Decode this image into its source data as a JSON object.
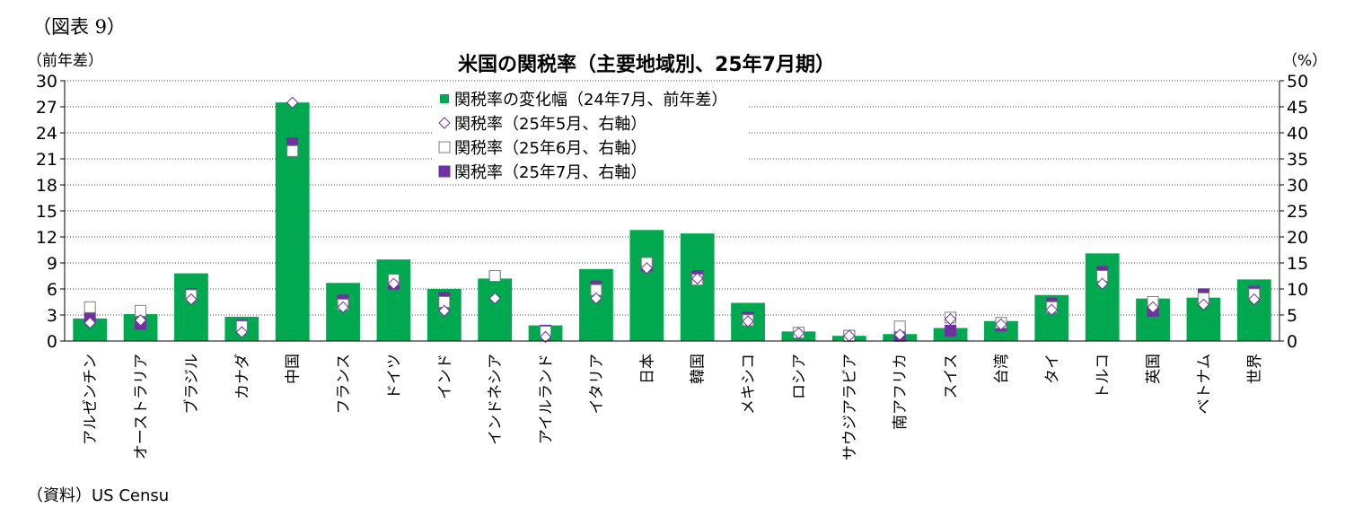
{
  "figure_label": "（図表 9）",
  "source": "（資料）US Censu",
  "chart_data": {
    "type": "bar",
    "title": "米国の関税率（主要地域別、25年7月期）",
    "ylabel_left": "（前年差）",
    "ylabel_right": "（%）",
    "ylim_left": [
      0,
      30
    ],
    "yticks_left": [
      0,
      3,
      6,
      9,
      12,
      15,
      18,
      21,
      24,
      27,
      30
    ],
    "ylim_right": [
      0,
      50
    ],
    "yticks_right": [
      0,
      5,
      10,
      15,
      20,
      25,
      30,
      35,
      40,
      45,
      50
    ],
    "grid": true,
    "legend_position": "top-center",
    "categories": [
      "アルゼンチン",
      "オーストラリア",
      "ブラジル",
      "カナダ",
      "中国",
      "フランス",
      "ドイツ",
      "インド",
      "インドネシア",
      "アイルランド",
      "イタリア",
      "日本",
      "韓国",
      "メキシコ",
      "ロシア",
      "サウジアラビア",
      "南アフリカ",
      "スイス",
      "台湾",
      "タイ",
      "トルコ",
      "英国",
      "ベトナム",
      "世界"
    ],
    "series": [
      {
        "name": "関税率の変化幅（24年7月、前年差）",
        "axis": "left",
        "kind": "bar",
        "color": "#00a84f",
        "values": [
          2.6,
          3.1,
          7.8,
          2.8,
          27.5,
          6.7,
          9.4,
          6.0,
          7.2,
          1.8,
          8.3,
          12.8,
          12.4,
          4.4,
          1.1,
          0.6,
          0.8,
          1.5,
          2.3,
          5.3,
          10.1,
          4.9,
          5.0,
          7.1
        ]
      },
      {
        "name": "関税率（25年5月、右軸）",
        "axis": "right",
        "kind": "marker",
        "marker": "diamond-open",
        "color": "#7030a0",
        "values": [
          3.5,
          4.0,
          8.0,
          1.7,
          45.8,
          6.5,
          11.0,
          5.8,
          8.2,
          0.8,
          8.2,
          14.0,
          12.0,
          3.8,
          1.5,
          1.0,
          1.2,
          4.2,
          3.2,
          6.0,
          11.0,
          6.5,
          7.0,
          8.0
        ]
      },
      {
        "name": "関税率（25年6月、右軸）",
        "axis": "right",
        "kind": "marker",
        "marker": "square-open",
        "color": "#7030a0",
        "values": [
          6.5,
          5.8,
          8.8,
          2.8,
          36.5,
          7.0,
          11.8,
          7.5,
          12.5,
          1.8,
          9.8,
          15.0,
          11.8,
          4.0,
          1.6,
          1.0,
          2.8,
          4.5,
          3.5,
          6.5,
          12.5,
          7.5,
          8.2,
          9.0
        ]
      },
      {
        "name": "関税率（25年7月、右軸）",
        "axis": "right",
        "kind": "marker",
        "marker": "square-filled",
        "color": "#7030a0",
        "values": [
          4.5,
          3.3,
          9.0,
          3.0,
          38.0,
          7.8,
          11.0,
          8.3,
          12.5,
          2.0,
          10.5,
          14.5,
          12.5,
          4.5,
          1.5,
          1.0,
          1.0,
          2.0,
          3.0,
          7.2,
          13.3,
          5.8,
          9.0,
          9.5
        ]
      }
    ]
  }
}
